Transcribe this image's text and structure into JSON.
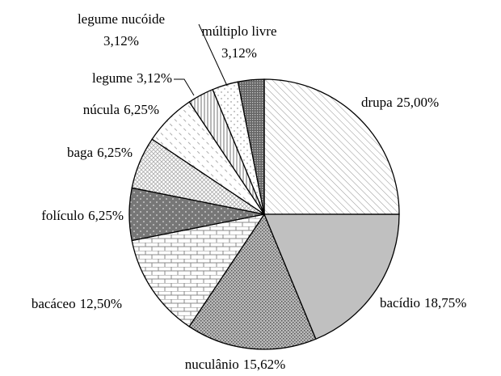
{
  "chart_data": {
    "type": "pie",
    "categories": [
      "drupa",
      "bacídio",
      "nuculânio",
      "bacáceo",
      "folículo",
      "baga",
      "núcula",
      "legume",
      "legume nucóide",
      "múltiplo livre"
    ],
    "values": [
      25.0,
      18.75,
      15.62,
      12.5,
      6.25,
      6.25,
      6.25,
      3.12,
      3.12,
      3.12
    ],
    "value_labels": [
      "25,00%",
      "18,75%",
      "15,62%",
      "12,50%",
      "6,25%",
      "6,25%",
      "6,25%",
      "3,12%",
      "3,12%",
      "3,12%"
    ]
  }
}
